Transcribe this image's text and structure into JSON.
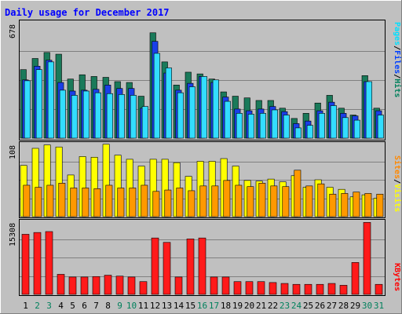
{
  "chart_data": [
    {
      "type": "bar",
      "title": "Daily usage for December 2017",
      "panel": "top",
      "max_label": "678",
      "ylim": [
        0,
        678
      ],
      "legend": [
        {
          "name": "Pages",
          "color": "#00e0ff"
        },
        {
          "name": "/",
          "color": "#000000"
        },
        {
          "name": "Files",
          "color": "#0040ff"
        },
        {
          "name": "/",
          "color": "#000000"
        },
        {
          "name": "Hits",
          "color": "#00805c"
        }
      ],
      "categories": [
        "1",
        "2",
        "3",
        "4",
        "5",
        "6",
        "7",
        "8",
        "9",
        "10",
        "11",
        "12",
        "13",
        "14",
        "15",
        "16",
        "17",
        "18",
        "19",
        "20",
        "21",
        "22",
        "23",
        "24",
        "25",
        "26",
        "27",
        "28",
        "29",
        "30",
        "31"
      ],
      "weekend_days": [
        "2",
        "3",
        "9",
        "10",
        "16",
        "17",
        "23",
        "24",
        "30",
        "31"
      ],
      "series": [
        {
          "name": "Hits",
          "color": "#1a7a5a",
          "values": [
            400,
            465,
            500,
            490,
            345,
            370,
            360,
            355,
            330,
            325,
            245,
            615,
            445,
            310,
            385,
            375,
            345,
            270,
            245,
            235,
            220,
            220,
            175,
            115,
            145,
            205,
            250,
            175,
            135,
            365,
            175
          ]
        },
        {
          "name": "Files",
          "color": "#1a3fe8",
          "values": [
            340,
            420,
            455,
            325,
            275,
            280,
            285,
            310,
            290,
            290,
            175,
            565,
            380,
            280,
            320,
            360,
            325,
            240,
            170,
            160,
            170,
            185,
            155,
            85,
            100,
            160,
            210,
            145,
            130,
            330,
            160
          ]
        },
        {
          "name": "Pages",
          "color": "#33ddff",
          "values": [
            335,
            400,
            445,
            280,
            250,
            275,
            265,
            260,
            255,
            250,
            185,
            495,
            410,
            265,
            300,
            360,
            340,
            215,
            145,
            140,
            145,
            165,
            135,
            60,
            75,
            145,
            190,
            120,
            105,
            330,
            135
          ]
        }
      ]
    },
    {
      "type": "bar",
      "panel": "middle",
      "max_label": "108",
      "ylim": [
        0,
        108
      ],
      "legend": [
        {
          "name": "Sites",
          "color": "#ff8800"
        },
        {
          "name": "/",
          "color": "#000000"
        },
        {
          "name": "Visits",
          "color": "#ffff00"
        }
      ],
      "categories": [
        "1",
        "2",
        "3",
        "4",
        "5",
        "6",
        "7",
        "8",
        "9",
        "10",
        "11",
        "12",
        "13",
        "14",
        "15",
        "16",
        "17",
        "18",
        "19",
        "20",
        "21",
        "22",
        "23",
        "24",
        "25",
        "26",
        "27",
        "28",
        "29",
        "30",
        "31"
      ],
      "series": [
        {
          "name": "Visits",
          "color": "#ffff00",
          "values": [
            75,
            100,
            105,
            102,
            61,
            88,
            87,
            106,
            90,
            84,
            74,
            84,
            84,
            79,
            59,
            81,
            81,
            85,
            74,
            53,
            52,
            55,
            51,
            60,
            43,
            54,
            43,
            40,
            29,
            32,
            27
          ]
        },
        {
          "name": "Sites",
          "color": "#ff9900",
          "values": [
            46,
            43,
            46,
            49,
            42,
            42,
            41,
            46,
            42,
            42,
            46,
            37,
            39,
            42,
            38,
            45,
            45,
            53,
            46,
            44,
            49,
            45,
            44,
            68,
            45,
            48,
            33,
            34,
            36,
            34,
            33
          ]
        }
      ]
    },
    {
      "type": "bar",
      "panel": "bottom",
      "max_label": "15308",
      "ylim": [
        0,
        15308
      ],
      "legend": [
        {
          "name": "KBytes",
          "color": "#ff0000"
        }
      ],
      "categories": [
        "1",
        "2",
        "3",
        "4",
        "5",
        "6",
        "7",
        "8",
        "9",
        "10",
        "11",
        "12",
        "13",
        "14",
        "15",
        "16",
        "17",
        "18",
        "19",
        "20",
        "21",
        "22",
        "23",
        "24",
        "25",
        "26",
        "27",
        "28",
        "29",
        "30",
        "31"
      ],
      "series": [
        {
          "name": "KBytes",
          "color": "#ff1a1a",
          "values": [
            12470,
            12840,
            13030,
            4160,
            3600,
            3600,
            3700,
            3980,
            3790,
            3600,
            2650,
            11700,
            10790,
            3600,
            11510,
            11700,
            3600,
            3600,
            2650,
            2650,
            2650,
            2460,
            2270,
            2080,
            2080,
            2080,
            2270,
            1890,
            6620,
            14930,
            2080
          ]
        }
      ]
    }
  ]
}
